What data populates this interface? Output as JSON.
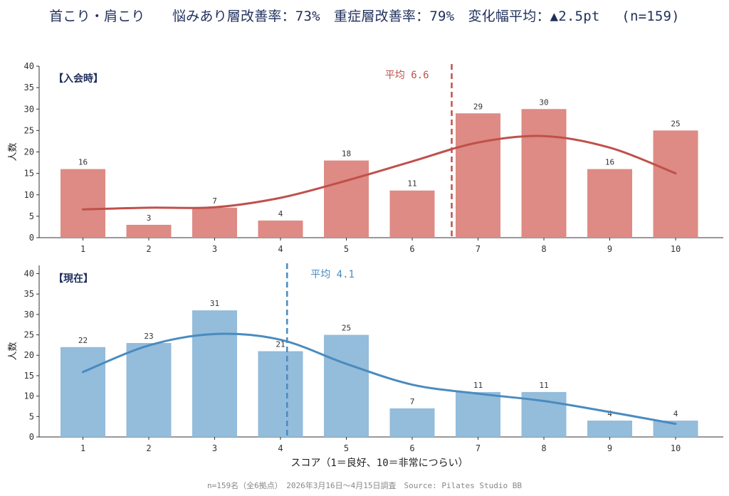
{
  "title": "首こり・肩こり　　悩みあり層改善率：73%　重症層改善率：79%　変化幅平均：▲2.5pt　 (n=159)",
  "footer": "n=159名（全6拠点）　2026年3月16日～4月15日調査　Source: Pilates Studio BB",
  "chart_data": [
    {
      "type": "bar",
      "panel_label": "【入会時】",
      "categories": [
        "1",
        "2",
        "3",
        "4",
        "5",
        "6",
        "7",
        "8",
        "9",
        "10"
      ],
      "values": [
        16,
        3,
        7,
        4,
        18,
        11,
        29,
        30,
        16,
        25
      ],
      "curve": [
        6.6,
        7.0,
        7.1,
        9.3,
        13.3,
        17.8,
        22.2,
        23.7,
        21.0,
        15.0
      ],
      "mean": 6.6,
      "mean_label": "平均 6.6",
      "ylabel": "人数",
      "xlabel": "",
      "ylim": [
        0,
        40
      ],
      "yticks": [
        0,
        5,
        10,
        15,
        20,
        25,
        30,
        35,
        40
      ],
      "colors": {
        "bar": "#dd8b84",
        "line": "#c0504a",
        "label": "#1f2f5c"
      }
    },
    {
      "type": "bar",
      "panel_label": "【現在】",
      "categories": [
        "1",
        "2",
        "3",
        "4",
        "5",
        "6",
        "7",
        "8",
        "9",
        "10"
      ],
      "values": [
        22,
        23,
        31,
        21,
        25,
        7,
        11,
        11,
        4,
        4
      ],
      "curve": [
        15.9,
        22.4,
        25.2,
        23.8,
        17.9,
        12.8,
        10.6,
        8.8,
        6.1,
        3.2
      ],
      "mean": 4.1,
      "mean_label": "平均 4.1",
      "ylabel": "人数",
      "xlabel": "スコア（1＝良好、10＝非常につらい）",
      "ylim": [
        0,
        42
      ],
      "yticks": [
        0,
        5,
        10,
        15,
        20,
        25,
        30,
        35,
        40
      ],
      "colors": {
        "bar": "#94bcdb",
        "line": "#4a8bbf",
        "label": "#1f2f5c"
      }
    }
  ]
}
